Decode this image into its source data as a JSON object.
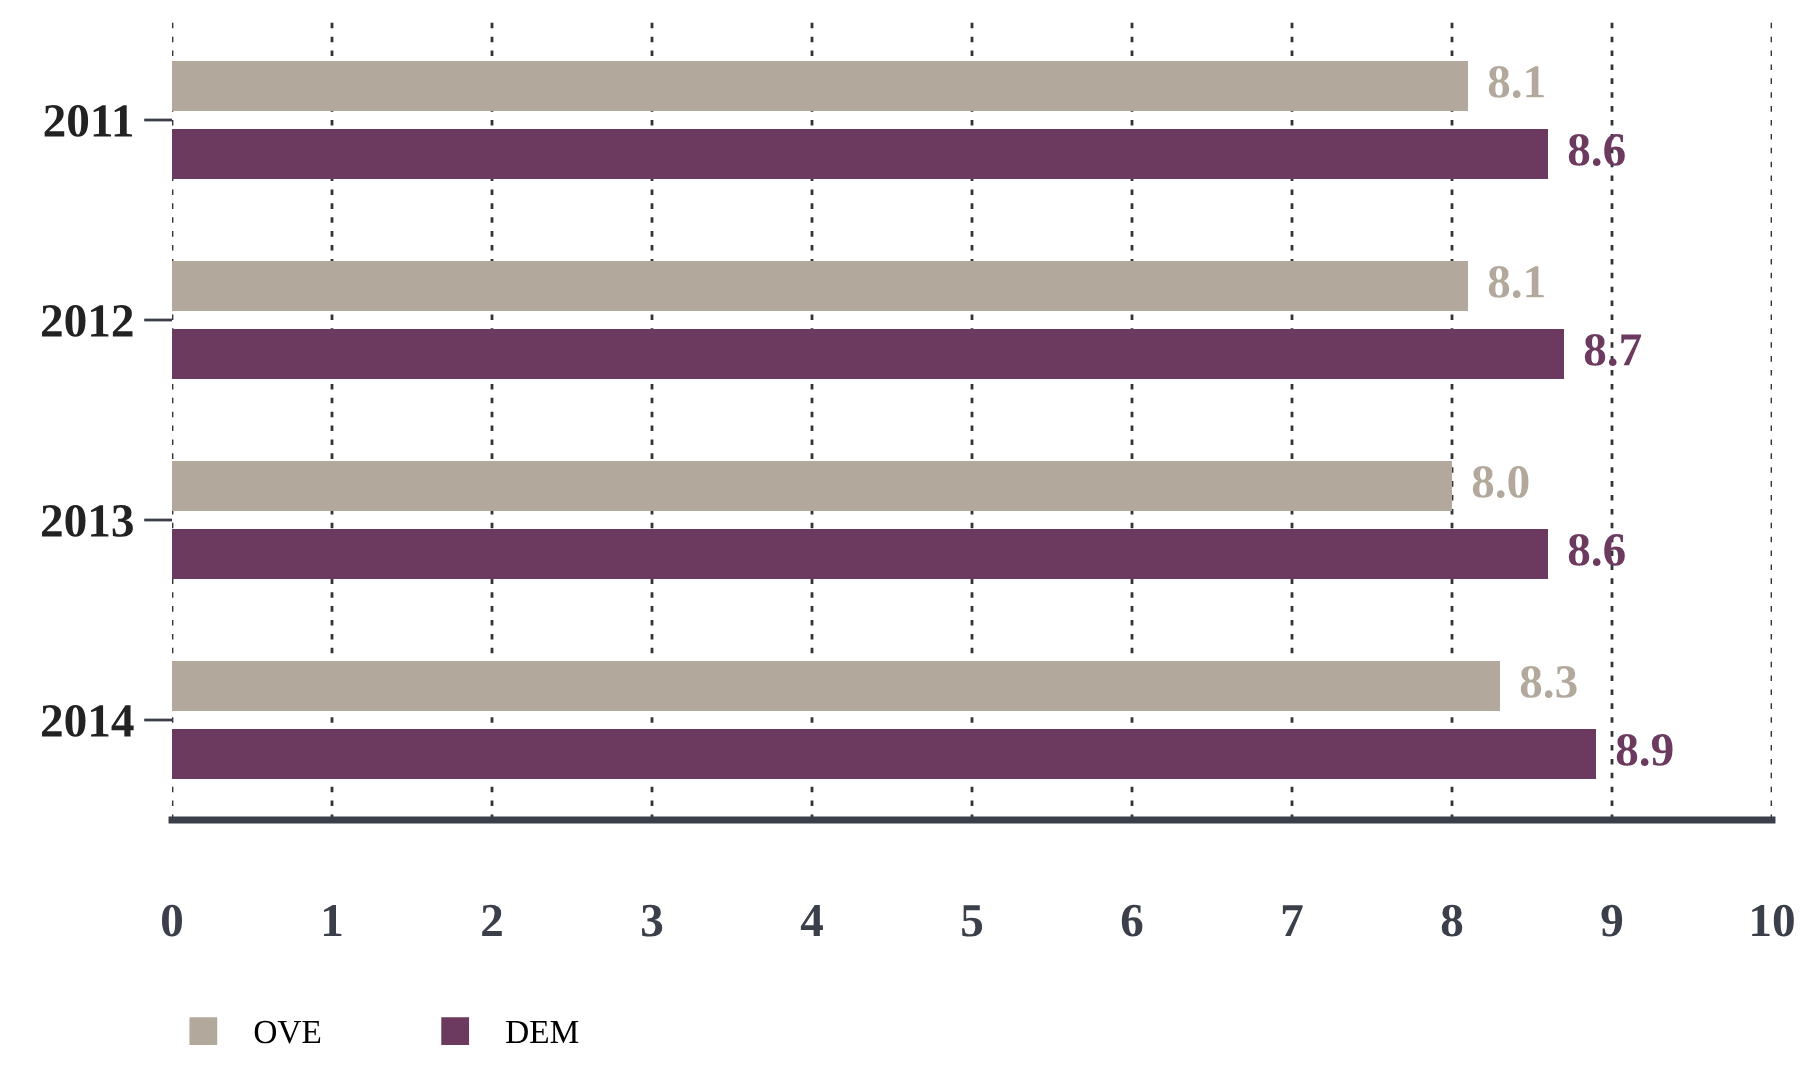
{
  "chart_data": {
    "type": "bar",
    "orientation": "horizontal",
    "categories": [
      "2011",
      "2012",
      "2013",
      "2014"
    ],
    "series": [
      {
        "name": "OVE",
        "color": "#b2a89b",
        "values": [
          8.1,
          8.1,
          8.0,
          8.3
        ],
        "value_labels": [
          "8.1",
          "8.1",
          "8.0",
          "8.3"
        ]
      },
      {
        "name": "DEM",
        "color": "#6b3a5e",
        "values": [
          8.6,
          8.7,
          8.6,
          8.9
        ],
        "value_labels": [
          "8.6",
          "8.7",
          "8.6",
          "8.9"
        ]
      }
    ],
    "xlim": [
      0,
      10
    ],
    "xticks": [
      0,
      1,
      2,
      3,
      4,
      5,
      6,
      7,
      8,
      9,
      10
    ],
    "grid": "x",
    "legend": "bottom left"
  }
}
